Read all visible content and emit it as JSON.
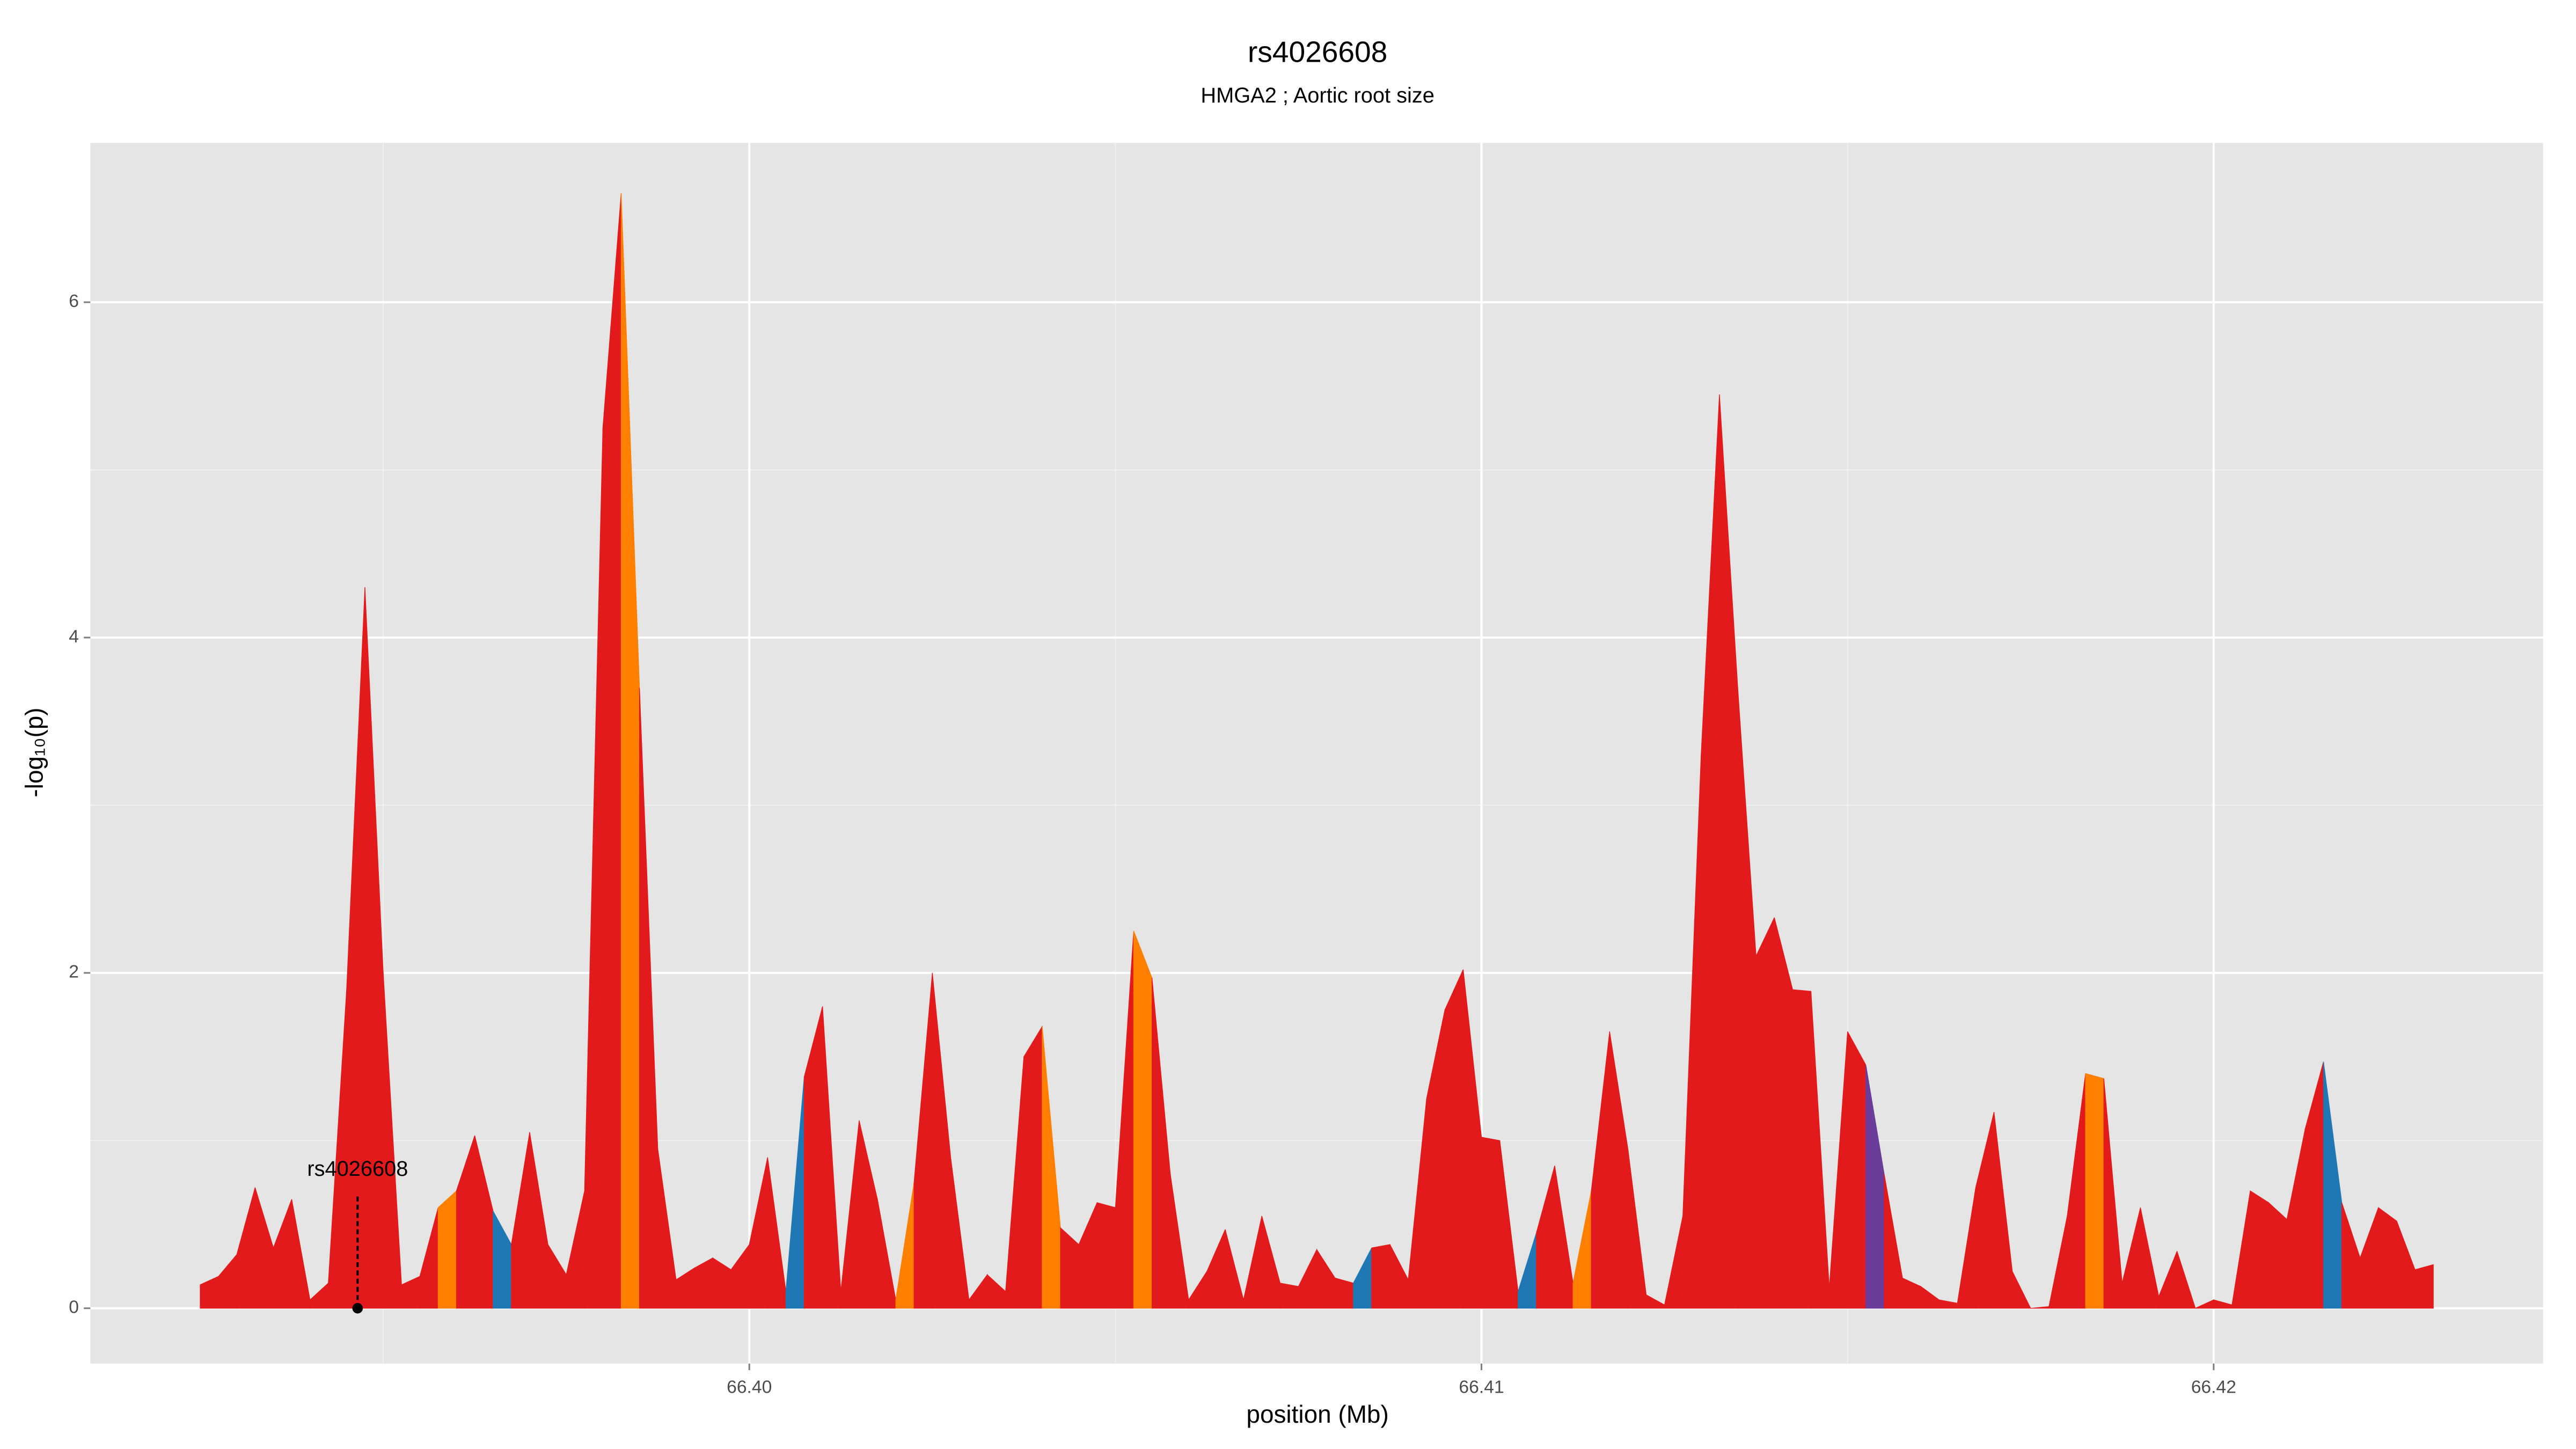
{
  "chart_data": {
    "type": "area",
    "title": "rs4026608",
    "subtitle": "HMGA2 ; Aortic root size",
    "xlabel": "position (Mb)",
    "ylabel": "-log₁₀(p)",
    "x": [
      66.3925,
      66.39275,
      66.393,
      66.39325,
      66.3935,
      66.39375,
      66.394,
      66.39425,
      66.3945,
      66.39475,
      66.395,
      66.39525,
      66.3955,
      66.39575,
      66.396,
      66.39625,
      66.3965,
      66.39675,
      66.397,
      66.39725,
      66.3975,
      66.39775,
      66.398,
      66.39825,
      66.3985,
      66.39875,
      66.399,
      66.39925,
      66.3995,
      66.39975,
      66.4,
      66.40025,
      66.4005,
      66.40075,
      66.401,
      66.40125,
      66.4015,
      66.40175,
      66.402,
      66.40225,
      66.4025,
      66.40275,
      66.403,
      66.40325,
      66.4035,
      66.40375,
      66.404,
      66.40425,
      66.4045,
      66.40475,
      66.405,
      66.40525,
      66.4055,
      66.40575,
      66.406,
      66.40625,
      66.4065,
      66.40675,
      66.407,
      66.40725,
      66.4075,
      66.40775,
      66.408,
      66.40825,
      66.4085,
      66.40875,
      66.409,
      66.40925,
      66.4095,
      66.40975,
      66.41,
      66.41025,
      66.4105,
      66.41075,
      66.411,
      66.41125,
      66.4115,
      66.41175,
      66.412,
      66.41225,
      66.4125,
      66.41275,
      66.413,
      66.41325,
      66.4135,
      66.41375,
      66.414,
      66.41425,
      66.4145,
      66.41475,
      66.415,
      66.41525,
      66.4155,
      66.41575,
      66.416,
      66.41625,
      66.4165,
      66.41675,
      66.417,
      66.41725,
      66.4175,
      66.41775,
      66.418,
      66.41825,
      66.4185,
      66.41875,
      66.419,
      66.41925,
      66.4195,
      66.41975,
      66.42,
      66.42025,
      66.4205,
      66.42075,
      66.421,
      66.42125,
      66.4215,
      66.42175,
      66.422,
      66.42225,
      66.4225,
      66.42275,
      66.423
    ],
    "values": [
      0.14,
      0.19,
      0.32,
      0.72,
      0.36,
      0.65,
      0.05,
      0.15,
      1.9,
      4.3,
      2.0,
      0.14,
      0.19,
      0.6,
      0.7,
      1.03,
      0.58,
      0.38,
      1.05,
      0.38,
      0.2,
      0.7,
      5.25,
      6.65,
      3.7,
      0.95,
      0.17,
      0.24,
      0.3,
      0.23,
      0.38,
      0.9,
      0.1,
      1.38,
      1.8,
      0.1,
      1.12,
      0.65,
      0.05,
      0.75,
      2.0,
      0.9,
      0.05,
      0.2,
      0.1,
      1.5,
      1.68,
      0.48,
      0.38,
      0.63,
      0.6,
      2.25,
      1.97,
      0.8,
      0.05,
      0.22,
      0.47,
      0.05,
      0.55,
      0.15,
      0.13,
      0.35,
      0.18,
      0.15,
      0.36,
      0.38,
      0.17,
      1.25,
      1.78,
      2.02,
      1.02,
      1.0,
      0.1,
      0.45,
      0.85,
      0.15,
      0.7,
      1.65,
      0.95,
      0.08,
      0.02,
      0.55,
      3.3,
      5.45,
      3.7,
      2.1,
      2.33,
      1.9,
      1.89,
      0.12,
      1.65,
      1.45,
      0.8,
      0.18,
      0.13,
      0.05,
      0.03,
      0.72,
      1.17,
      0.22,
      0,
      0.01,
      0.55,
      1.4,
      1.37,
      0.15,
      0.6,
      0.07,
      0.34,
      0,
      0.05,
      0.02,
      0.7,
      0.63,
      0.53,
      1.07,
      1.47,
      0.63,
      0.3,
      0.6,
      0.52,
      0.23,
      0.26
    ],
    "color": "#e31a1c",
    "segment_colors": {
      "13": "#ff7f00",
      "16": "#1f78b4",
      "23": "#ff7f00",
      "32": "#1f78b4",
      "38": "#ff7f00",
      "46": "#ff7f00",
      "51": "#ff7f00",
      "63": "#1f78b4",
      "72": "#1f78b4",
      "75": "#ff7f00",
      "91": "#6a3d9a",
      "103": "#ff7f00",
      "116": "#1f78b4"
    },
    "annotation": {
      "text": "rs4026608",
      "x": 66.39465
    },
    "xlim": [
      66.391,
      66.4245
    ],
    "ylim": [
      -0.33,
      6.95
    ],
    "xticks": [
      {
        "value": 66.4,
        "label": "66.40"
      },
      {
        "value": 66.41,
        "label": "66.41"
      },
      {
        "value": 66.42,
        "label": "66.42"
      }
    ],
    "yticks": [
      0,
      2,
      4,
      6
    ],
    "x_minor_ticks": [
      66.395,
      66.405,
      66.415
    ],
    "y_minor_ticks": [
      1,
      3,
      5
    ],
    "grid": true
  }
}
